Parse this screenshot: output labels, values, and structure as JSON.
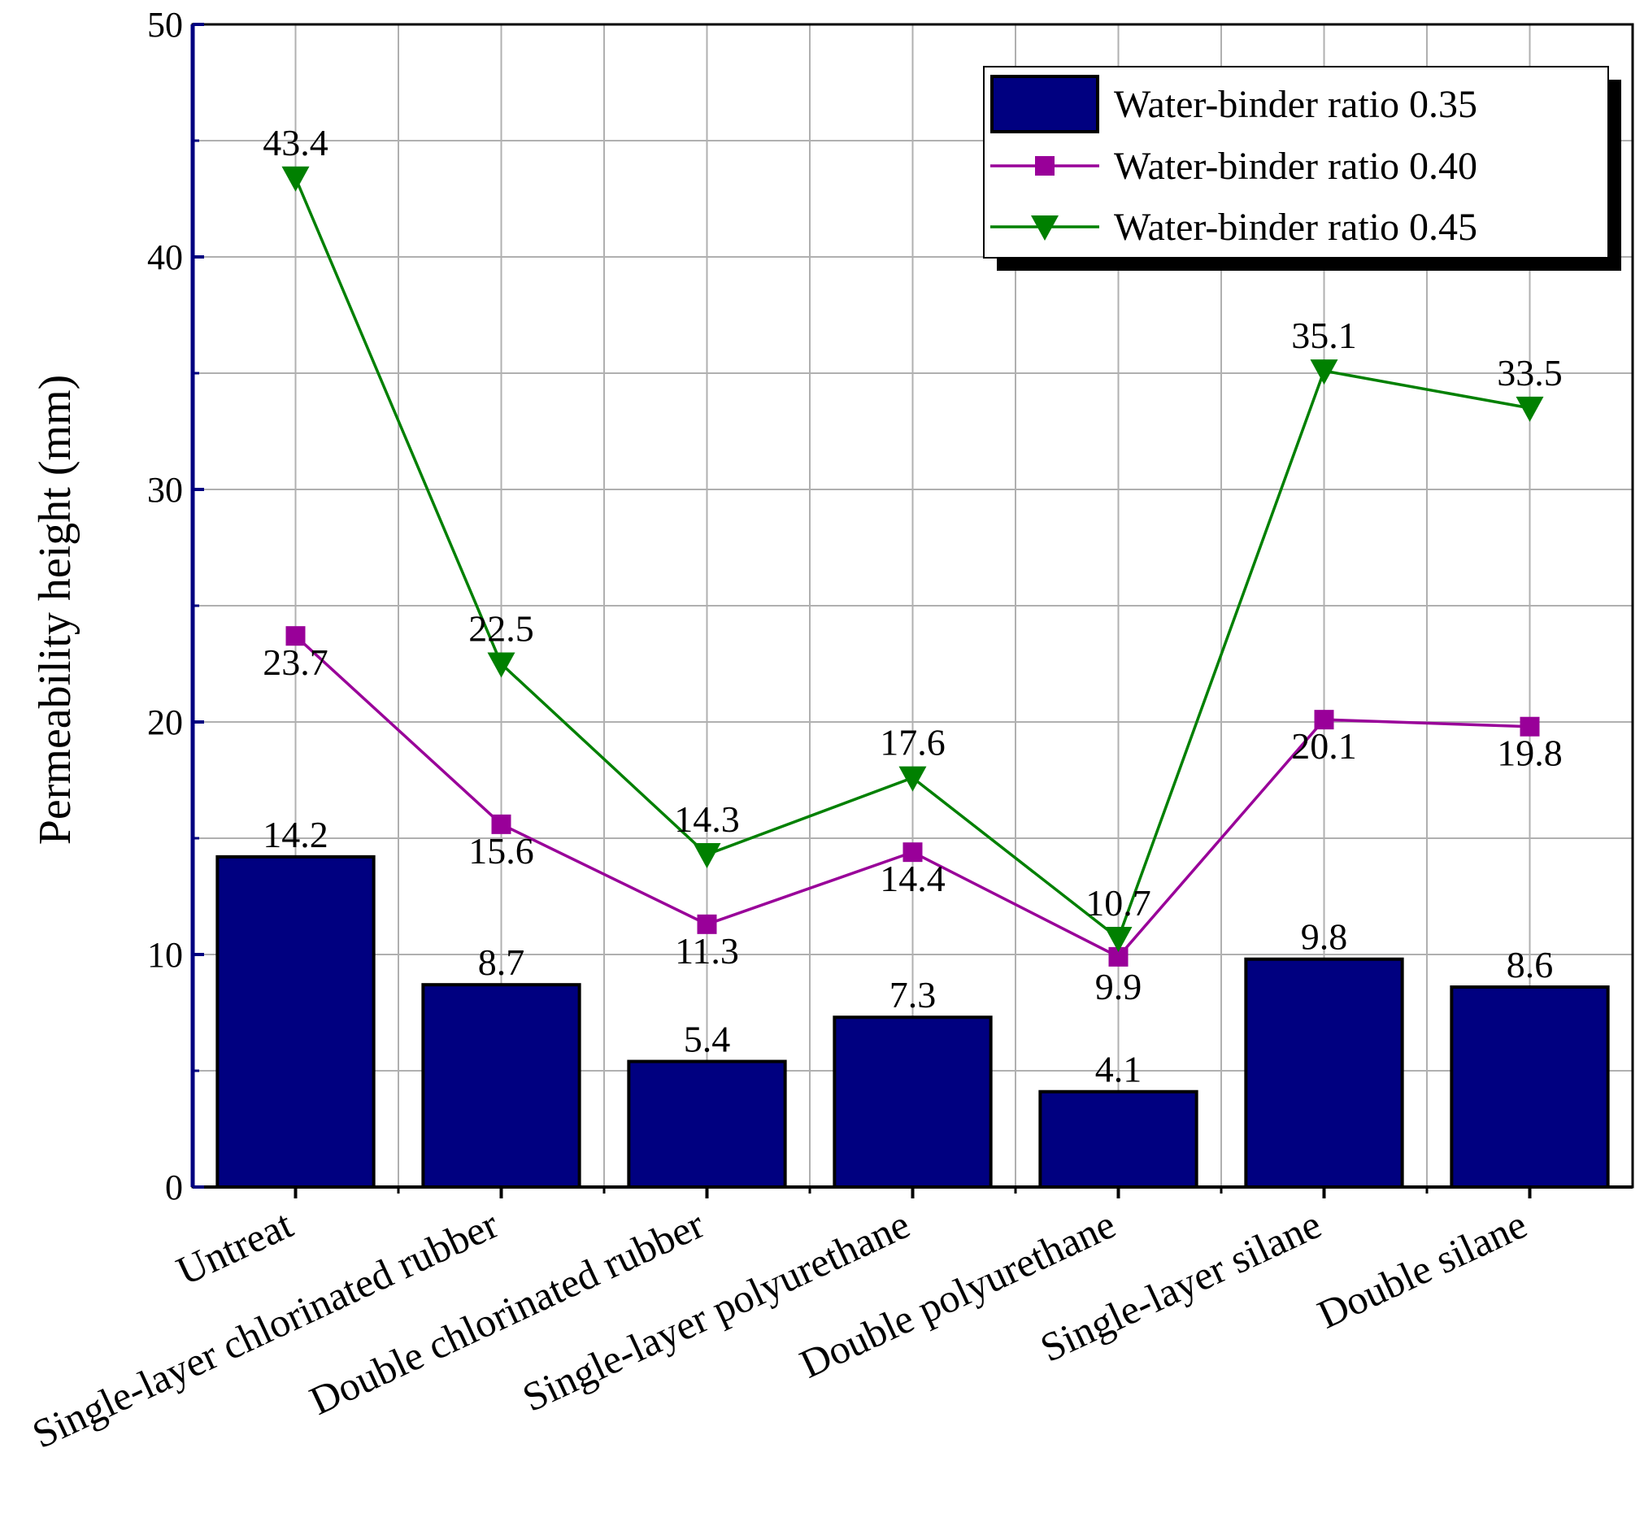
{
  "chart_data": {
    "type": "bar",
    "title": "",
    "xlabel": "",
    "ylabel": "Permeability height (mm)",
    "ylim": [
      0,
      50
    ],
    "yticks": [
      0,
      10,
      20,
      30,
      40,
      50
    ],
    "grid": true,
    "legend_position": "top-right",
    "categories": [
      "Untreat",
      "Single-layer chlorinated rubber",
      "Double chlorinated rubber",
      "Single-layer polyurethane",
      "Double polyurethane",
      "Single-layer silane",
      "Double silane"
    ],
    "series": [
      {
        "name": "Water-binder ratio 0.35",
        "kind": "bar",
        "color": "#000080",
        "values": [
          14.2,
          8.7,
          5.4,
          7.3,
          4.1,
          9.8,
          8.6
        ],
        "labels": [
          "14.2",
          "8.7",
          "5.4",
          "7.3",
          "4.1",
          "9.8",
          "8.6"
        ]
      },
      {
        "name": "Water-binder ratio 0.40",
        "kind": "line",
        "marker": "square",
        "color": "#990099",
        "values": [
          23.7,
          15.6,
          11.3,
          14.4,
          9.9,
          20.1,
          19.8
        ],
        "labels": [
          "23.7",
          "15.6",
          "11.3",
          "14.4",
          "9.9",
          "20.1",
          "19.8"
        ]
      },
      {
        "name": "Water-binder ratio 0.45",
        "kind": "line",
        "marker": "triangle-down",
        "color": "#008000",
        "values": [
          43.4,
          22.5,
          14.3,
          17.6,
          10.7,
          35.1,
          33.5
        ],
        "labels": [
          "43.4",
          "22.5",
          "14.3",
          "17.6",
          "10.7",
          "35.1",
          "33.5"
        ]
      }
    ]
  }
}
